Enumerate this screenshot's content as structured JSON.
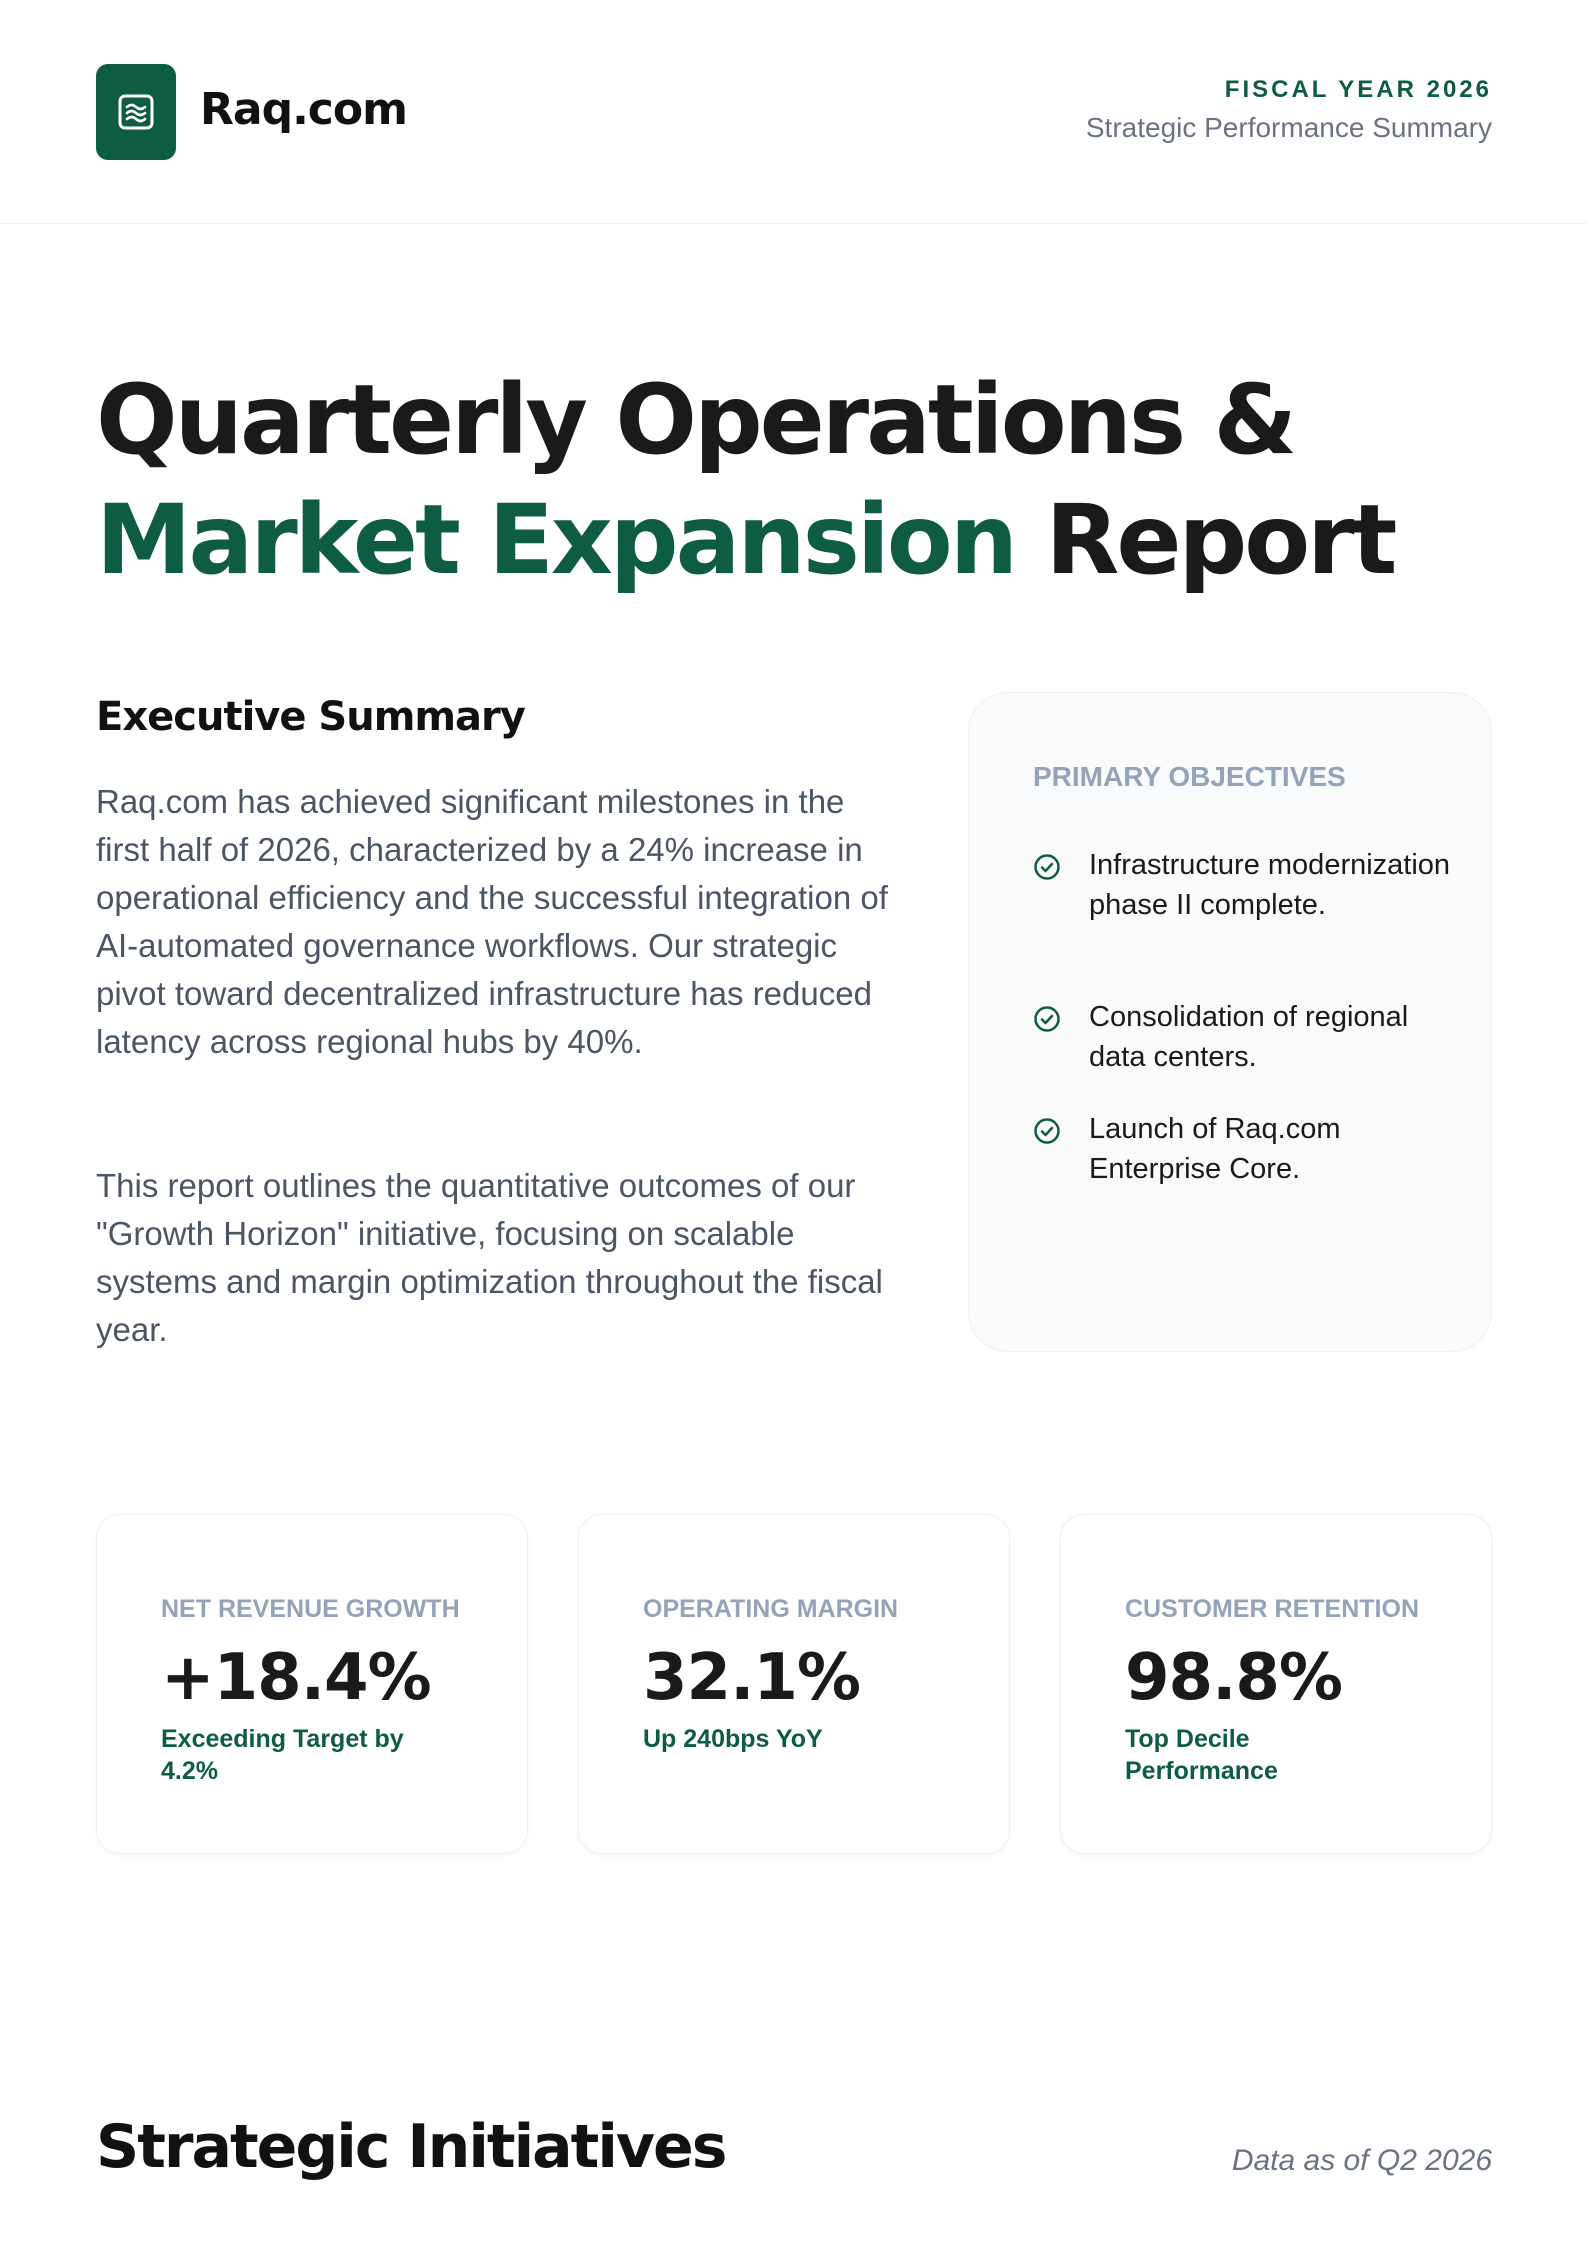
{
  "header": {
    "logo_icon": "waves-icon",
    "logo_text": "Raq.com",
    "fiscal_year": "FISCAL YEAR 2026",
    "subtitle": "Strategic Performance Summary"
  },
  "title": {
    "line1": "Quarterly Operations &",
    "line2_accent": "Market Expansion",
    "line2_rest": " Report"
  },
  "executive_summary": {
    "heading": "Executive Summary",
    "paragraph1": "Raq.com has achieved significant milestones in the first half of 2026, characterized by a 24% increase in operational efficiency and the successful integration of AI-automated governance workflows. Our strategic pivot toward decentralized infrastructure has reduced latency across regional hubs by 40%.",
    "paragraph2": "This report outlines the quantitative outcomes of our \"Growth Horizon\" initiative, focusing on scalable systems and margin optimization throughout the fiscal year."
  },
  "objectives": {
    "title": "PRIMARY OBJECTIVES",
    "items": [
      "Infrastructure modernization phase II complete.",
      "Consolidation of regional data centers.",
      "Launch of Raq.com Enterprise Core."
    ],
    "accent_color": "#0f5c45"
  },
  "metrics": [
    {
      "label": "NET REVENUE GROWTH",
      "value": "+18.4%",
      "note": "Exceeding Target by 4.2%"
    },
    {
      "label": "OPERATING MARGIN",
      "value": "32.1%",
      "note": "Up 240bps YoY"
    },
    {
      "label": "CUSTOMER RETENTION",
      "value": "98.8%",
      "note": "Top Decile Performance"
    }
  ],
  "strategic": {
    "heading": "Strategic Initiatives",
    "data_as_of": "Data as of Q2 2026"
  },
  "colors": {
    "brand": "#0f5c45",
    "muted": "#94a3b8",
    "body_text": "#4b5563"
  }
}
